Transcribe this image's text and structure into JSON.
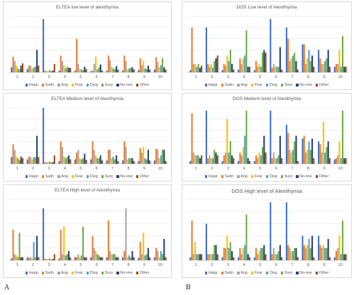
{
  "figure_letters": {
    "left": "A",
    "right": "B"
  },
  "series_colors": {
    "Happ": "#4472c4",
    "Sadn": "#ed7d31",
    "Ang": "#a5a5a5",
    "Fear": "#ffc000",
    "Disg": "#5b9bd5",
    "Surp": "#70ad47",
    "No-one": "#264478",
    "Other": "#9e480e"
  },
  "chart_data": [
    {
      "type": "bar",
      "title": "ELTEA low level of alexithymia",
      "categories": [
        "1",
        "2",
        "3",
        "4",
        "5",
        "6",
        "7",
        "8",
        "9",
        "10"
      ],
      "ylim": [
        0,
        10
      ],
      "grid": true,
      "legend": "bottom",
      "series": [
        {
          "name": "Happ",
          "values": [
            0.9,
            0.6,
            9.5,
            0.3,
            0.3,
            0.2,
            0.3,
            0.3,
            0.4,
            0.5
          ]
        },
        {
          "name": "Sadn",
          "values": [
            2.8,
            1.2,
            0.3,
            3.0,
            6.0,
            0.3,
            3.0,
            3.0,
            2.5,
            2.7
          ]
        },
        {
          "name": "Ang",
          "values": [
            2.0,
            1.2,
            0.2,
            2.0,
            1.5,
            1.5,
            2.2,
            2.0,
            1.3,
            1.8
          ]
        },
        {
          "name": "Fear",
          "values": [
            1.2,
            0.7,
            0.2,
            1.2,
            0.6,
            2.8,
            1.0,
            0.5,
            2.0,
            0.9
          ]
        },
        {
          "name": "Disg",
          "values": [
            0.7,
            0.9,
            0.4,
            0.7,
            0.5,
            0.5,
            0.7,
            0.7,
            0.7,
            1.3
          ]
        },
        {
          "name": "Surp",
          "values": [
            0.5,
            1.0,
            0.2,
            1.0,
            0.4,
            0.9,
            0.6,
            0.8,
            0.6,
            2.5
          ]
        },
        {
          "name": "No-one",
          "values": [
            1.2,
            4.0,
            0.3,
            0.8,
            1.0,
            1.4,
            1.1,
            0.9,
            1.2,
            0.9
          ]
        },
        {
          "name": "Other",
          "values": [
            1.6,
            1.2,
            1.5,
            0.8,
            0.6,
            0.3,
            0.5,
            0.5,
            0.5,
            0.5
          ]
        }
      ]
    },
    {
      "type": "bar",
      "title": "DOS Low level of Alexithymia",
      "categories": [
        "1",
        "2",
        "3",
        "4",
        "5",
        "6",
        "7",
        "8",
        "9",
        "10"
      ],
      "ylim": [
        0,
        10
      ],
      "grid": true,
      "legend": "bottom",
      "series": [
        {
          "name": "Happ",
          "values": [
            0.4,
            8.0,
            0.4,
            0.5,
            0.4,
            9.5,
            8.0,
            5.0,
            4.0,
            1.0
          ]
        },
        {
          "name": "Sadn",
          "values": [
            8.0,
            1.5,
            1.5,
            2.5,
            2.0,
            0.8,
            6.0,
            5.0,
            2.5,
            1.5
          ]
        },
        {
          "name": "Ang",
          "values": [
            1.5,
            1.0,
            1.2,
            1.5,
            1.0,
            1.5,
            2.0,
            1.5,
            1.5,
            1.5
          ]
        },
        {
          "name": "Fear",
          "values": [
            1.5,
            1.5,
            3.0,
            2.5,
            1.5,
            1.0,
            2.5,
            2.5,
            1.5,
            4.0
          ]
        },
        {
          "name": "Disg",
          "values": [
            1.0,
            0.8,
            2.0,
            3.0,
            1.0,
            1.0,
            3.0,
            4.0,
            2.0,
            1.0
          ]
        },
        {
          "name": "Surp",
          "values": [
            1.5,
            2.0,
            4.0,
            7.5,
            3.5,
            1.0,
            3.5,
            2.0,
            2.5,
            6.5
          ]
        },
        {
          "name": "No-one",
          "values": [
            0.8,
            2.5,
            1.5,
            1.0,
            4.0,
            4.5,
            2.0,
            3.0,
            4.0,
            1.0
          ]
        },
        {
          "name": "Other",
          "values": [
            1.2,
            3.0,
            0.5,
            1.0,
            3.5,
            0.5,
            0.5,
            1.0,
            1.0,
            1.0
          ]
        }
      ]
    },
    {
      "type": "bar",
      "title": "ELTEA Medium level of Alexithymia",
      "categories": [
        "1",
        "2",
        "3",
        "4",
        "5",
        "6",
        "7",
        "8",
        "9",
        "10"
      ],
      "ylim": [
        0,
        10
      ],
      "grid": true,
      "legend": "bottom",
      "series": [
        {
          "name": "Happ",
          "values": [
            1.2,
            0.8,
            10.0,
            0.5,
            0.8,
            0.8,
            0.6,
            0.6,
            0.5,
            0.6
          ]
        },
        {
          "name": "Sadn",
          "values": [
            3.5,
            1.3,
            0.3,
            4.0,
            2.0,
            4.0,
            2.5,
            4.0,
            2.8,
            2.7
          ]
        },
        {
          "name": "Ang",
          "values": [
            2.5,
            1.2,
            0.3,
            3.0,
            2.5,
            2.5,
            2.5,
            3.0,
            2.0,
            2.5
          ]
        },
        {
          "name": "Fear",
          "values": [
            1.3,
            0.8,
            0.3,
            1.3,
            1.0,
            1.5,
            1.0,
            0.8,
            3.0,
            1.0
          ]
        },
        {
          "name": "Disg",
          "values": [
            1.0,
            1.2,
            0.4,
            1.0,
            0.8,
            1.0,
            1.3,
            1.0,
            1.0,
            1.5
          ]
        },
        {
          "name": "Surp",
          "values": [
            0.7,
            1.2,
            0.2,
            1.2,
            1.0,
            1.0,
            0.8,
            1.0,
            0.8,
            2.5
          ]
        },
        {
          "name": "No-one",
          "values": [
            1.3,
            5.0,
            0.3,
            1.5,
            1.8,
            1.5,
            1.5,
            1.0,
            2.5,
            2.5
          ]
        },
        {
          "name": "Other",
          "values": [
            1.0,
            1.2,
            1.5,
            0.8,
            0.7,
            0.6,
            0.5,
            0.5,
            0.6,
            0.5
          ]
        }
      ]
    },
    {
      "type": "bar",
      "title": "DOS Medium level of Alexithymia",
      "categories": [
        "1",
        "2",
        "3",
        "4",
        "5",
        "6",
        "7",
        "8",
        "9",
        "10"
      ],
      "ylim": [
        0,
        10
      ],
      "grid": true,
      "legend": "bottom",
      "series": [
        {
          "name": "Happ",
          "values": [
            0.5,
            9.5,
            0.5,
            0.5,
            0.5,
            9.5,
            7.0,
            4.5,
            4.0,
            0.8
          ]
        },
        {
          "name": "Sadn",
          "values": [
            9.0,
            1.0,
            1.5,
            2.0,
            1.5,
            1.0,
            5.5,
            5.0,
            3.5,
            1.0
          ]
        },
        {
          "name": "Ang",
          "values": [
            2.0,
            1.5,
            2.0,
            1.5,
            1.0,
            2.0,
            2.5,
            2.0,
            2.0,
            1.5
          ]
        },
        {
          "name": "Fear",
          "values": [
            1.5,
            1.0,
            8.0,
            3.0,
            2.0,
            1.0,
            2.0,
            2.5,
            7.5,
            4.0
          ]
        },
        {
          "name": "Disg",
          "values": [
            1.5,
            1.0,
            2.0,
            5.0,
            1.5,
            1.0,
            2.5,
            4.0,
            2.0,
            1.0
          ]
        },
        {
          "name": "Surp",
          "values": [
            1.5,
            2.5,
            4.0,
            9.5,
            3.0,
            1.5,
            4.0,
            2.5,
            3.0,
            9.5
          ]
        },
        {
          "name": "No-one",
          "values": [
            1.0,
            2.0,
            1.5,
            1.0,
            5.0,
            5.0,
            5.0,
            4.5,
            4.0,
            1.0
          ]
        },
        {
          "name": "Other",
          "values": [
            1.5,
            1.5,
            1.0,
            0.5,
            2.0,
            1.0,
            0.5,
            1.0,
            1.0,
            1.0
          ]
        }
      ]
    },
    {
      "type": "bar",
      "title": "ELTEA High level of Alexithymia",
      "categories": [
        "1",
        "2",
        "3",
        "4",
        "5",
        "6",
        "7",
        "8",
        "9",
        "10"
      ],
      "ylim": [
        0,
        10
      ],
      "grid": true,
      "legend": "bottom",
      "series": [
        {
          "name": "Happ",
          "values": [
            0.3,
            0.5,
            8.5,
            0.3,
            0.5,
            0.5,
            0.5,
            0.5,
            0.4,
            0.5
          ]
        },
        {
          "name": "Sadn",
          "values": [
            5.0,
            0.4,
            0.2,
            5.0,
            0.5,
            4.0,
            6.5,
            1.5,
            3.0,
            2.0
          ]
        },
        {
          "name": "Ang",
          "values": [
            1.0,
            0.5,
            0.2,
            1.0,
            1.0,
            2.0,
            1.5,
            8.5,
            1.0,
            1.5
          ]
        },
        {
          "name": "Fear",
          "values": [
            0.8,
            0.3,
            0.2,
            5.5,
            0.5,
            1.5,
            1.0,
            0.5,
            4.5,
            0.5
          ]
        },
        {
          "name": "Disg",
          "values": [
            0.5,
            3.0,
            0.3,
            0.8,
            0.8,
            1.0,
            1.0,
            0.8,
            0.8,
            1.5
          ]
        },
        {
          "name": "Surp",
          "values": [
            4.5,
            0.5,
            0.1,
            1.0,
            5.5,
            0.8,
            1.0,
            0.5,
            1.0,
            1.0
          ]
        },
        {
          "name": "No-one",
          "values": [
            0.5,
            4.0,
            0.2,
            1.5,
            0.5,
            0.5,
            0.5,
            1.5,
            2.0,
            3.5
          ]
        },
        {
          "name": "Other",
          "values": [
            0.5,
            0.5,
            1.0,
            0.5,
            0.5,
            0.5,
            0.5,
            0.5,
            0.5,
            0.5
          ]
        }
      ]
    },
    {
      "type": "bar",
      "title": "DOS High level of Alexithymia",
      "categories": [
        "1",
        "2",
        "3",
        "4",
        "5",
        "6",
        "7",
        "8",
        "9",
        "10"
      ],
      "ylim": [
        0,
        10
      ],
      "grid": true,
      "legend": "bottom",
      "series": [
        {
          "name": "Happ",
          "values": [
            0.5,
            6.0,
            0.5,
            0.5,
            0.5,
            9.5,
            9.5,
            4.0,
            4.0,
            0.5
          ]
        },
        {
          "name": "Sadn",
          "values": [
            6.5,
            1.0,
            2.0,
            2.0,
            2.0,
            1.0,
            2.5,
            2.5,
            2.5,
            1.5
          ]
        },
        {
          "name": "Ang",
          "values": [
            1.0,
            1.0,
            2.0,
            1.0,
            1.0,
            2.0,
            2.0,
            2.0,
            2.0,
            2.0
          ]
        },
        {
          "name": "Fear",
          "values": [
            3.0,
            1.0,
            4.0,
            2.0,
            1.5,
            1.0,
            1.5,
            2.5,
            2.5,
            4.0
          ]
        },
        {
          "name": "Disg",
          "values": [
            1.0,
            1.0,
            2.0,
            2.5,
            2.0,
            1.0,
            1.5,
            3.5,
            2.0,
            1.0
          ]
        },
        {
          "name": "Surp",
          "values": [
            1.0,
            2.5,
            3.0,
            7.5,
            2.0,
            1.5,
            2.0,
            2.0,
            2.0,
            6.5
          ]
        },
        {
          "name": "No-one",
          "values": [
            1.0,
            2.5,
            1.5,
            1.0,
            2.5,
            2.5,
            2.0,
            4.0,
            3.5,
            1.0
          ]
        },
        {
          "name": "Other",
          "values": [
            1.0,
            1.0,
            0.5,
            0.5,
            1.0,
            0.5,
            0.5,
            0.5,
            0.5,
            1.0
          ]
        }
      ]
    }
  ]
}
